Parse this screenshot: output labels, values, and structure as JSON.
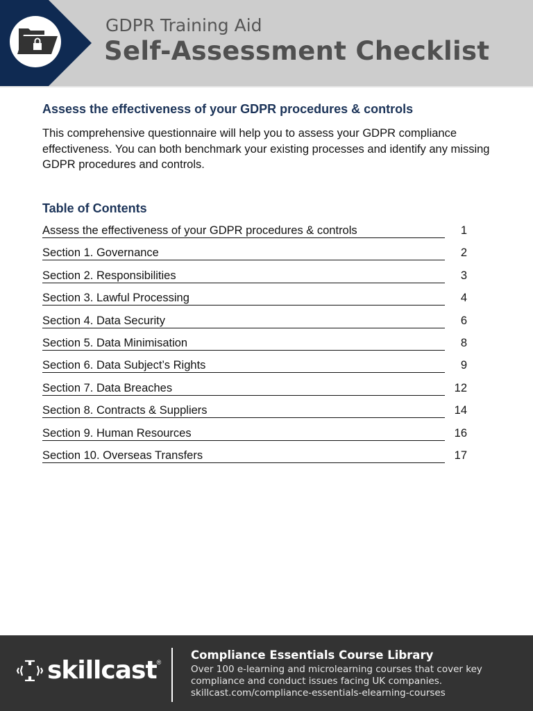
{
  "header": {
    "subtitle": "GDPR Training Aid",
    "title": "Self-Assessment Checklist",
    "icon": "locked-folder-icon",
    "accent": "#0f2a52"
  },
  "intro": {
    "heading": "Assess the effectiveness of your GDPR procedures & controls",
    "body": "This comprehensive questionnaire will help you to assess your GDPR compliance effectiveness. You can both benchmark your existing processes and identify any missing GDPR procedures and controls."
  },
  "toc": {
    "heading": "Table of Contents",
    "items": [
      {
        "title": "Assess the effectiveness of your GDPR procedures & controls",
        "page": "1"
      },
      {
        "title": "Section 1. Governance",
        "page": "2"
      },
      {
        "title": "Section 2. Responsibilities",
        "page": "3"
      },
      {
        "title": "Section 3. Lawful Processing",
        "page": "4"
      },
      {
        "title": "Section 4. Data Security",
        "page": "6"
      },
      {
        "title": "Section 5. Data Minimisation",
        "page": "8"
      },
      {
        "title": "Section 6. Data Subject’s Rights",
        "page": "9"
      },
      {
        "title": "Section 7. Data Breaches",
        "page": "12"
      },
      {
        "title": "Section 8. Contracts & Suppliers",
        "page": "14"
      },
      {
        "title": "Section 9. Human Resources",
        "page": "16"
      },
      {
        "title": "Section 10. Overseas Transfers",
        "page": "17"
      }
    ]
  },
  "footer": {
    "logo": "skillcast",
    "registered": "®",
    "title": "Compliance Essentials Course Library",
    "lines": [
      "Over 100 e-learning and microlearning courses that cover key",
      "compliance and conduct issues facing UK companies.",
      "skillcast.com/compliance-essentials-elearning-courses"
    ]
  }
}
